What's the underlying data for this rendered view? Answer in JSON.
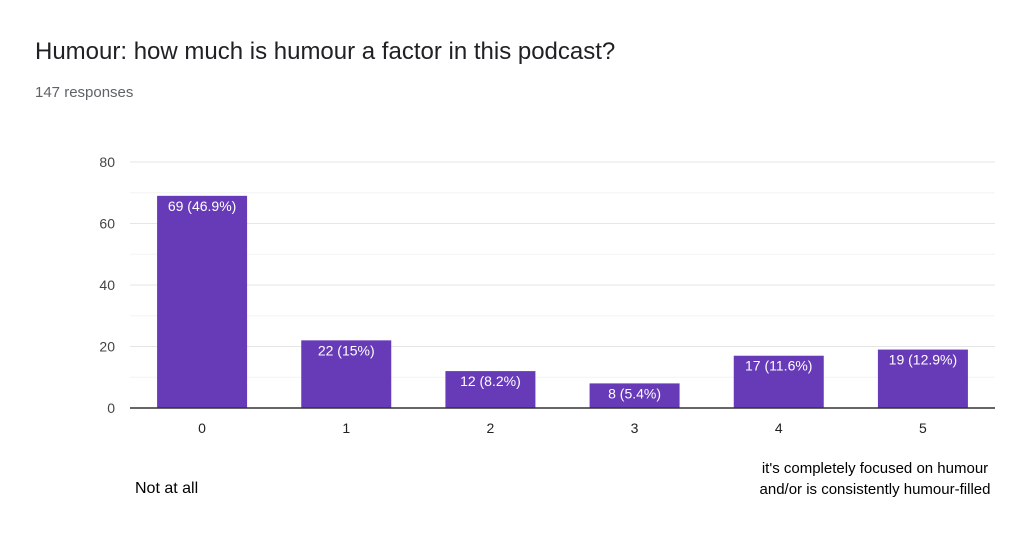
{
  "header": {
    "title": "Humour: how much is humour a factor in this podcast?",
    "responses": "147 responses"
  },
  "scale_notes": {
    "low": "Not at all",
    "high": "it's completely focused on humour and/or is consistently humour-filled"
  },
  "chart_data": {
    "type": "bar",
    "title": "Humour: how much is humour a factor in this podcast?",
    "categories": [
      "0",
      "1",
      "2",
      "3",
      "4",
      "5"
    ],
    "values": [
      69,
      22,
      12,
      8,
      17,
      19
    ],
    "labels": [
      "69 (46.9%)",
      "22 (15%)",
      "12 (8.2%)",
      "8 (5.4%)",
      "17 (11.6%)",
      "19 (12.9%)"
    ],
    "yticks": [
      0,
      20,
      40,
      60,
      80
    ],
    "ylim": [
      0,
      80
    ],
    "grid": true,
    "bar_color": "#673ab7",
    "xlabel": "",
    "ylabel": ""
  }
}
